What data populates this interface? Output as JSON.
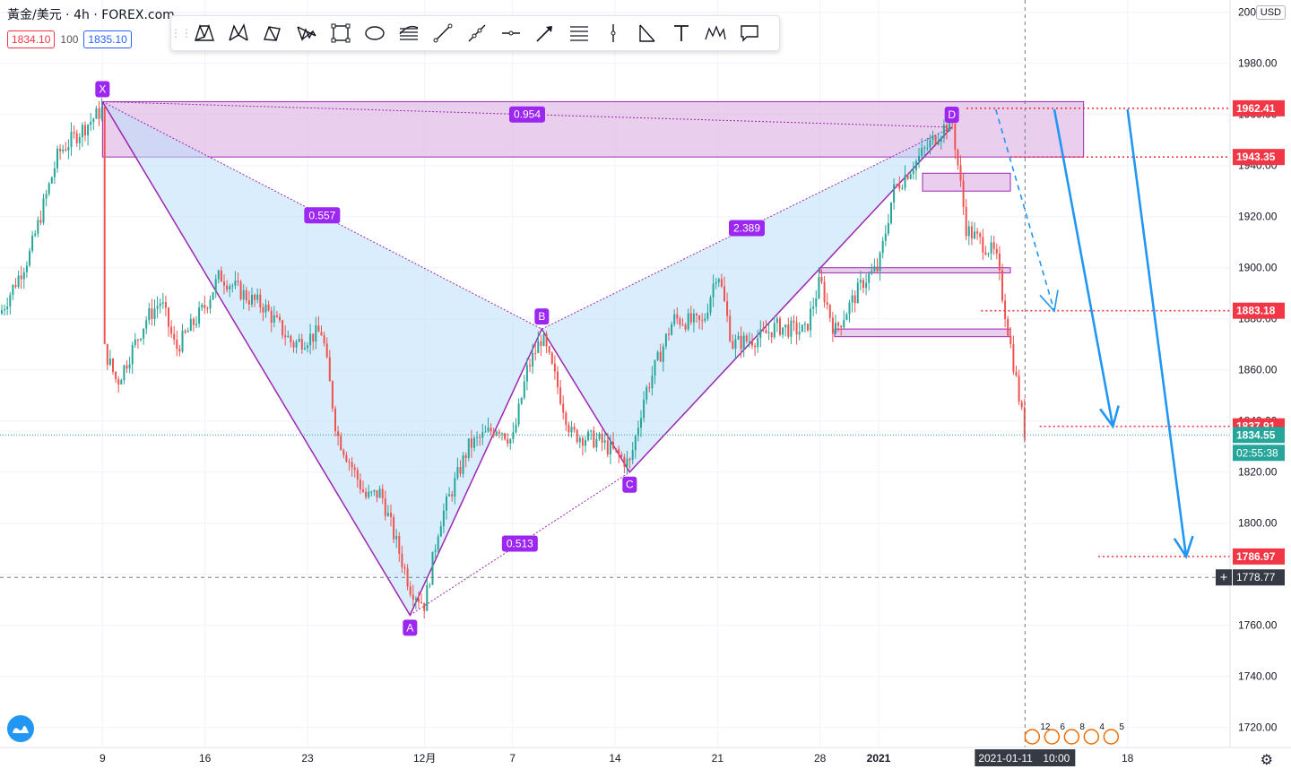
{
  "header": {
    "symbol": "黃金/美元",
    "interval": "4h",
    "exchange": "FOREX.com",
    "sell_price": "1834.10",
    "spread": "100",
    "buy_price": "1835.10",
    "currency": "USD"
  },
  "toolbar": {
    "tools": [
      "xabcd-pattern-icon",
      "cypher-pattern-icon",
      "abcd-pattern-icon",
      "triangle-pattern-icon",
      "three-drives-icon",
      "head-shoulders-icon",
      "elliott-wave-icon",
      "parallel-channel-icon",
      "trend-line-icon",
      "ray-icon",
      "horizontal-line-icon",
      "arrow-icon",
      "fib-retracement-icon",
      "vertical-line-icon",
      "angle-icon",
      "text-icon",
      "pattern-icon",
      "callout-icon"
    ]
  },
  "colors": {
    "up": "#26a69a",
    "down": "#ef5350",
    "pattern_fill": "#bbdefb",
    "pattern_line": "#9c27b0",
    "zone_fill": "#e1bee7",
    "label_bg": "#9c27f0",
    "arrow": "#2196f3",
    "price_red": "#f23645",
    "price_green": "#26a69a"
  },
  "chart_data": {
    "type": "candlestick",
    "title": "黃金/美元 · 4h · FOREX.com",
    "ylabel": "USD",
    "ylim": [
      1715,
      2002
    ],
    "y_ticks": [
      1720.0,
      1740.0,
      1760.0,
      1780.0,
      1800.0,
      1820.0,
      1840.0,
      1860.0,
      1880.0,
      1900.0,
      1920.0,
      1940.0,
      1960.0,
      1980.0,
      2000.0
    ],
    "x_ticks": [
      "9",
      "16",
      "23",
      "12月",
      "7",
      "14",
      "21",
      "28",
      "2021",
      "2021-01-11",
      "10:00",
      "18"
    ],
    "x_tick_dates": [
      "2020-11-09",
      "2020-11-16",
      "2020-11-23",
      "2020-12-01",
      "2020-12-07",
      "2020-12-14",
      "2020-12-21",
      "2020-12-28",
      "2021-01-01",
      "2021-01-11",
      "2021-01-11",
      "2021-01-18"
    ],
    "xlim": [
      "2020-11-02",
      "2021-01-25"
    ],
    "price_path": [
      {
        "date": "2020-11-02",
        "price": 1882
      },
      {
        "date": "2020-11-04",
        "price": 1905
      },
      {
        "date": "2020-11-06",
        "price": 1945
      },
      {
        "date": "2020-11-09",
        "price": 1962
      },
      {
        "date": "2020-11-09",
        "price": 1870
      },
      {
        "date": "2020-11-10",
        "price": 1855
      },
      {
        "date": "2020-11-12",
        "price": 1880
      },
      {
        "date": "2020-11-13",
        "price": 1887
      },
      {
        "date": "2020-11-14",
        "price": 1868
      },
      {
        "date": "2020-11-16",
        "price": 1885
      },
      {
        "date": "2020-11-17",
        "price": 1897
      },
      {
        "date": "2020-11-19",
        "price": 1888
      },
      {
        "date": "2020-11-20",
        "price": 1885
      },
      {
        "date": "2020-11-22",
        "price": 1870
      },
      {
        "date": "2020-11-24",
        "price": 1875
      },
      {
        "date": "2020-11-25",
        "price": 1835
      },
      {
        "date": "2020-11-27",
        "price": 1810
      },
      {
        "date": "2020-11-28",
        "price": 1812
      },
      {
        "date": "2020-11-30",
        "price": 1775
      },
      {
        "date": "2020-12-01",
        "price": 1768
      },
      {
        "date": "2020-12-02",
        "price": 1800
      },
      {
        "date": "2020-12-04",
        "price": 1830
      },
      {
        "date": "2020-12-06",
        "price": 1838
      },
      {
        "date": "2020-12-07",
        "price": 1832
      },
      {
        "date": "2020-12-08",
        "price": 1860
      },
      {
        "date": "2020-12-09",
        "price": 1873
      },
      {
        "date": "2020-12-10",
        "price": 1855
      },
      {
        "date": "2020-12-11",
        "price": 1835
      },
      {
        "date": "2020-12-13",
        "price": 1832
      },
      {
        "date": "2020-12-15",
        "price": 1823
      },
      {
        "date": "2020-12-16",
        "price": 1850
      },
      {
        "date": "2020-12-18",
        "price": 1880
      },
      {
        "date": "2020-12-20",
        "price": 1878
      },
      {
        "date": "2020-12-21",
        "price": 1900
      },
      {
        "date": "2020-12-22",
        "price": 1870
      },
      {
        "date": "2020-12-24",
        "price": 1873
      },
      {
        "date": "2020-12-25",
        "price": 1877
      },
      {
        "date": "2020-12-27",
        "price": 1875
      },
      {
        "date": "2020-12-28",
        "price": 1895
      },
      {
        "date": "2020-12-29",
        "price": 1875
      },
      {
        "date": "2020-12-31",
        "price": 1895
      },
      {
        "date": "2021-01-01",
        "price": 1900
      },
      {
        "date": "2021-01-02",
        "price": 1930
      },
      {
        "date": "2021-01-04",
        "price": 1945
      },
      {
        "date": "2021-01-05",
        "price": 1952
      },
      {
        "date": "2021-01-06",
        "price": 1958
      },
      {
        "date": "2021-01-07",
        "price": 1915
      },
      {
        "date": "2021-01-08",
        "price": 1910
      },
      {
        "date": "2021-01-09",
        "price": 1905
      },
      {
        "date": "2021-01-10",
        "price": 1870
      },
      {
        "date": "2021-01-11",
        "price": 1834.55
      }
    ],
    "xabcd_pattern": {
      "points": [
        {
          "label": "X",
          "date": "2020-11-09",
          "price": 1965
        },
        {
          "label": "A",
          "date": "2020-11-30",
          "price": 1764
        },
        {
          "label": "B",
          "date": "2020-12-09",
          "price": 1876
        },
        {
          "label": "C",
          "date": "2020-12-15",
          "price": 1820
        },
        {
          "label": "D",
          "date": "2021-01-06",
          "price": 1955
        }
      ],
      "ratios": [
        {
          "label": "0.557",
          "between": [
            "X",
            "B"
          ]
        },
        {
          "label": "0.513",
          "between": [
            "A",
            "C"
          ]
        },
        {
          "label": "2.389",
          "between": [
            "B",
            "D"
          ]
        },
        {
          "label": "0.954",
          "between": [
            "X",
            "D"
          ]
        }
      ]
    },
    "zones": [
      {
        "start": "2020-11-09",
        "end": "2021-01-15",
        "low": 1943.35,
        "high": 1965
      },
      {
        "start": "2021-01-04",
        "end": "2021-01-10",
        "low": 1930,
        "high": 1937
      },
      {
        "start": "2020-12-28",
        "end": "2021-01-10",
        "low": 1898,
        "high": 1900
      },
      {
        "start": "2020-12-29",
        "end": "2021-01-10",
        "low": 1873,
        "high": 1876
      }
    ],
    "levels": [
      {
        "price": 1962.41,
        "label": "1962.41",
        "color": "#f23645",
        "from": "2021-01-07"
      },
      {
        "price": 1943.35,
        "label": "1943.35",
        "color": "#f23645",
        "from": "2021-01-10"
      },
      {
        "price": 1883.18,
        "label": "1883.18",
        "color": "#f23645",
        "from": "2021-01-08"
      },
      {
        "price": 1837.91,
        "label": "1837.91",
        "color": "#f23645",
        "from": "2021-01-12"
      },
      {
        "price": 1786.97,
        "label": "1786.97",
        "color": "#f23645",
        "from": "2021-01-16"
      }
    ],
    "last_price": {
      "price": 1834.55,
      "label": "1834.55",
      "countdown": "02:55:38",
      "color": "#26a69a"
    },
    "crosshair_price": {
      "price": 1778.77,
      "label": "1778.77"
    },
    "crosshair_time": "2021-01-11",
    "projection_arrows": [
      {
        "style": "dashed",
        "from": {
          "date": "2021-01-09",
          "price": 1962
        },
        "to": {
          "date": "2021-01-13",
          "price": 1883
        }
      },
      {
        "style": "solid",
        "from": {
          "date": "2021-01-13",
          "price": 1962
        },
        "to": {
          "date": "2021-01-17",
          "price": 1837.91
        }
      },
      {
        "style": "solid",
        "from": {
          "date": "2021-01-18",
          "price": 1962
        },
        "to": {
          "date": "2021-01-22",
          "price": 1786.97
        }
      }
    ],
    "events": [
      "12",
      "6",
      "8",
      "4",
      "5"
    ],
    "grid": true
  }
}
